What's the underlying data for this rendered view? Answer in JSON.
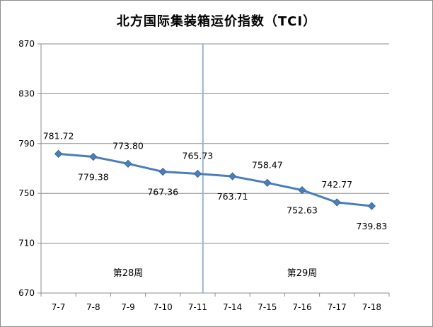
{
  "chart_data": {
    "type": "line",
    "title": "北方国际集装箱运价指数（TCI）",
    "categories": [
      "7-7",
      "7-8",
      "7-9",
      "7-10",
      "7-11",
      "7-14",
      "7-15",
      "7-16",
      "7-17",
      "7-18"
    ],
    "values": [
      781.72,
      779.38,
      773.8,
      767.36,
      765.73,
      763.71,
      758.47,
      752.63,
      742.77,
      739.83
    ],
    "data_labels": [
      "781.72",
      "779.38",
      "773.80",
      "767.36",
      "765.73",
      "763.71",
      "758.47",
      "752.63",
      "742.77",
      "739.83"
    ],
    "ylim": [
      670,
      870
    ],
    "yticks": [
      "670",
      "710",
      "750",
      "790",
      "830",
      "870"
    ],
    "grid": true,
    "legend": "none",
    "week_labels": [
      {
        "text": "第28周",
        "after_index_range": [
          0,
          4
        ]
      },
      {
        "text": "第29周",
        "after_index_range": [
          5,
          9
        ]
      }
    ],
    "divider_after_index": 4,
    "colors": {
      "line": "#4a7ebb",
      "marker": "#4a7ebb",
      "divider": "#95b3d7",
      "grid": "#8c8c8c"
    }
  }
}
